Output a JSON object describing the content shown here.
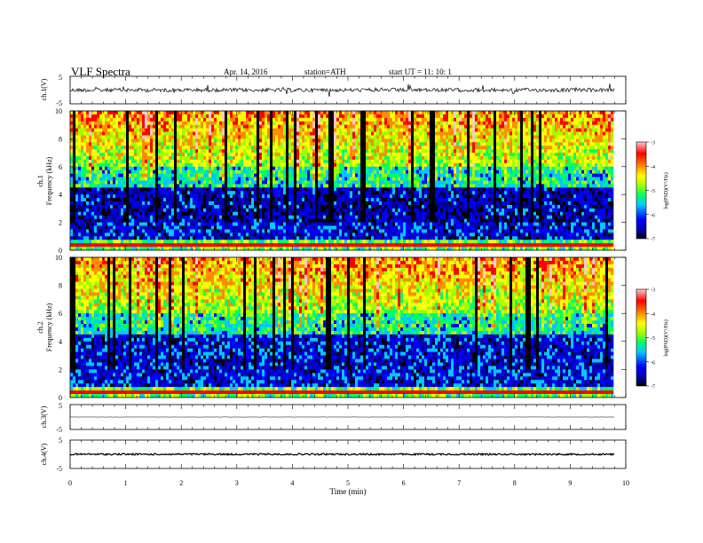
{
  "header": {
    "title": "VLF  Spectra",
    "date": "Apr. 14, 2016",
    "station": "station=ATH",
    "start_ut": "start  UT  =    11: 10: 1"
  },
  "colors": {
    "waveform": "#000000",
    "colormap": [
      "#000000",
      "#0000a0",
      "#0000ff",
      "#00c8ff",
      "#00ff64",
      "#a0ff00",
      "#ffff00",
      "#ff8c00",
      "#ff0000",
      "#ffc8c8"
    ]
  },
  "chart_data": [
    {
      "type": "line",
      "panel": "ch1-waveform",
      "ylabel": "ch.1(V)",
      "ylim": [
        -5,
        5
      ],
      "y_ticks": [
        "5",
        "-5"
      ],
      "xlim": [
        0,
        10
      ],
      "description_values": {
        "baseline_V": 0.0,
        "noise_amplitude_V": 0.7,
        "spike_amplitude_V": 2.0
      }
    },
    {
      "type": "heatmap",
      "panel": "ch1-spectrogram",
      "ylabel_line1": "ch.1",
      "ylabel_line2": "Frequency  (kHz)",
      "ylim": [
        0,
        10
      ],
      "y_ticks": [
        "0",
        "2",
        "4",
        "6",
        "8",
        "10"
      ],
      "xlim": [
        0,
        9.8
      ],
      "colorbar": {
        "label": "log(PSD)(V²/Hz)",
        "range": [
          -7,
          -3
        ],
        "ticks": [
          "-3",
          "-4",
          "-5",
          "-6",
          "-7"
        ]
      }
    },
    {
      "type": "heatmap",
      "panel": "ch2-spectrogram",
      "ylabel_line1": "ch.2",
      "ylabel_line2": "Frequency  (kHz)",
      "ylim": [
        0,
        10
      ],
      "y_ticks": [
        "0",
        "2",
        "4",
        "6",
        "8",
        "10"
      ],
      "xlim": [
        0,
        9.8
      ],
      "colorbar": {
        "label": "log(PSD)(V²/Hz)",
        "range": [
          -7,
          -3
        ],
        "ticks": [
          "-3",
          "-4",
          "-5",
          "-6",
          "-7"
        ]
      }
    },
    {
      "type": "line",
      "panel": "ch3-waveform",
      "ylabel": "ch.3(V)",
      "ylim": [
        -5,
        5
      ],
      "y_ticks": [
        "5",
        "-5"
      ],
      "description_values": {
        "baseline_V": 0.0,
        "noise_amplitude_V": 0.05
      }
    },
    {
      "type": "line",
      "panel": "ch4-waveform",
      "ylabel": "ch.4(V)",
      "ylim": [
        -5,
        5
      ],
      "y_ticks": [
        "5",
        "-5"
      ],
      "description_values": {
        "baseline_V": 0.0,
        "noise_amplitude_V": 0.3
      }
    }
  ],
  "x_axis": {
    "label": "Time  (min)",
    "range": [
      0,
      10
    ],
    "ticks": [
      "0",
      "1",
      "2",
      "3",
      "4",
      "5",
      "6",
      "7",
      "8",
      "9",
      "10"
    ]
  }
}
